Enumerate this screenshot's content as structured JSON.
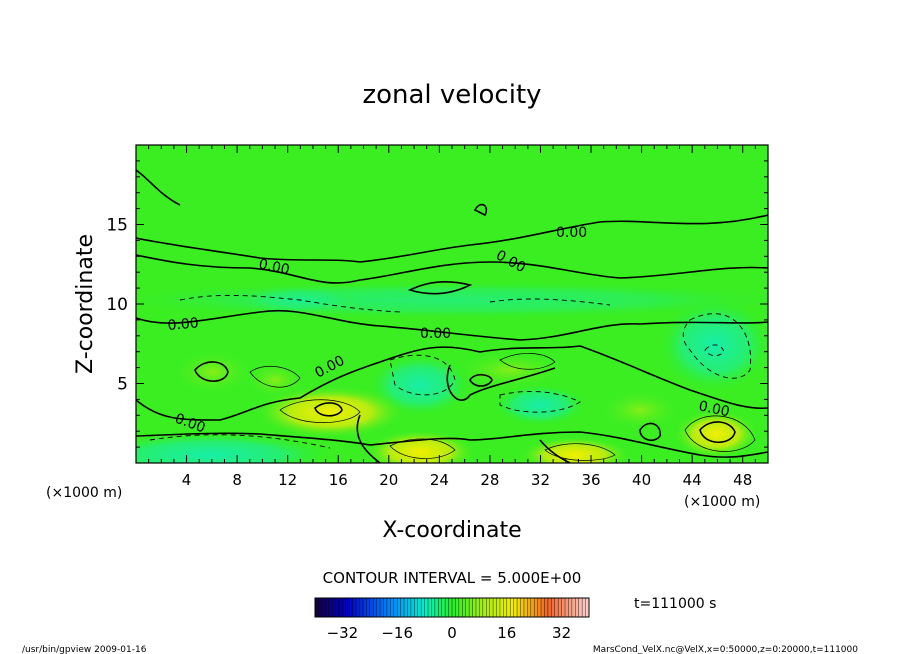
{
  "chart_data": {
    "type": "heatmap",
    "title": "zonal velocity",
    "xlabel": "X-coordinate",
    "ylabel": "Z-coordinate",
    "x_unit_left": "(×1000 m)",
    "x_unit_right": "(×1000 m)",
    "xlim": [
      0,
      50
    ],
    "ylim": [
      0,
      20
    ],
    "x_ticks": [
      "4",
      "8",
      "12",
      "16",
      "20",
      "24",
      "28",
      "32",
      "36",
      "40",
      "44",
      "48"
    ],
    "x_tick_values": [
      4,
      8,
      12,
      16,
      20,
      24,
      28,
      32,
      36,
      40,
      44,
      48
    ],
    "y_ticks": [
      "5",
      "10",
      "15"
    ],
    "y_tick_values": [
      5,
      10,
      15
    ],
    "contour_interval_text": "CONTOUR INTERVAL = 5.000E+00",
    "contour_interval": 5.0,
    "contour_labels": [
      "0.00",
      "0.00",
      "0.00",
      "0.00",
      "0.00",
      "0.00",
      "0.00",
      "0.00"
    ],
    "colorbar": {
      "range": [
        -40,
        40
      ],
      "ticks": [
        "-32",
        "-16",
        "0",
        "16",
        "32"
      ],
      "tick_values": [
        -32,
        -16,
        0,
        16,
        32
      ]
    },
    "time_label": "t=111000 s",
    "grid": false,
    "colors": {
      "background_field": "#33ee22",
      "positive_high": "#eeee10",
      "negative_low": "#22eeaa"
    }
  },
  "footer": {
    "left": "/usr/bin/gpview  2009-01-16",
    "right": "MarsCond_VelX.nc@VelX,x=0:50000,z=0:20000,t=111000"
  }
}
